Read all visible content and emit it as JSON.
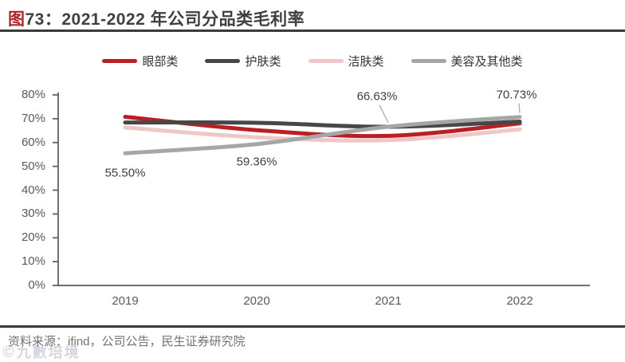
{
  "title": {
    "fig": "图",
    "num": "73：",
    "text": "2021-2022 年公司分品类毛利率"
  },
  "chart_data": {
    "type": "line",
    "title": "图73：2021-2022 年公司分品类毛利率",
    "categories": [
      "2019",
      "2020",
      "2021",
      "2022"
    ],
    "series": [
      {
        "name": "眼部类",
        "color": "#bb1f24",
        "values": [
          70.8,
          65.2,
          62.8,
          68.0
        ]
      },
      {
        "name": "护肤类",
        "color": "#474747",
        "values": [
          68.4,
          68.3,
          66.6,
          68.8
        ]
      },
      {
        "name": "洁肤类",
        "color": "#f0c7c7",
        "values": [
          66.3,
          62.2,
          61.0,
          65.5
        ]
      },
      {
        "name": "美容及其他类",
        "color": "#a6a6a6",
        "values": [
          55.5,
          59.36,
          66.63,
          70.73
        ]
      }
    ],
    "yticks": [
      "0%",
      "10%",
      "20%",
      "30%",
      "40%",
      "50%",
      "60%",
      "70%",
      "80%"
    ],
    "ylim": [
      0,
      80
    ],
    "grid": false,
    "smoothed": true,
    "legend_position": "top",
    "annotations": [
      {
        "text": "55.50%",
        "series": "美容及其他类",
        "category": "2019"
      },
      {
        "text": "59.36%",
        "series": "美容及其他类",
        "category": "2020"
      },
      {
        "text": "66.63%",
        "series": "美容及其他类",
        "category": "2021"
      },
      {
        "text": "70.73%",
        "series": "美容及其他类",
        "category": "2022"
      }
    ]
  },
  "source_note": "资料来源：ifind，公司公告，民生证券研究院",
  "watermark": {
    "logo": "©",
    "text": "九數培境"
  }
}
